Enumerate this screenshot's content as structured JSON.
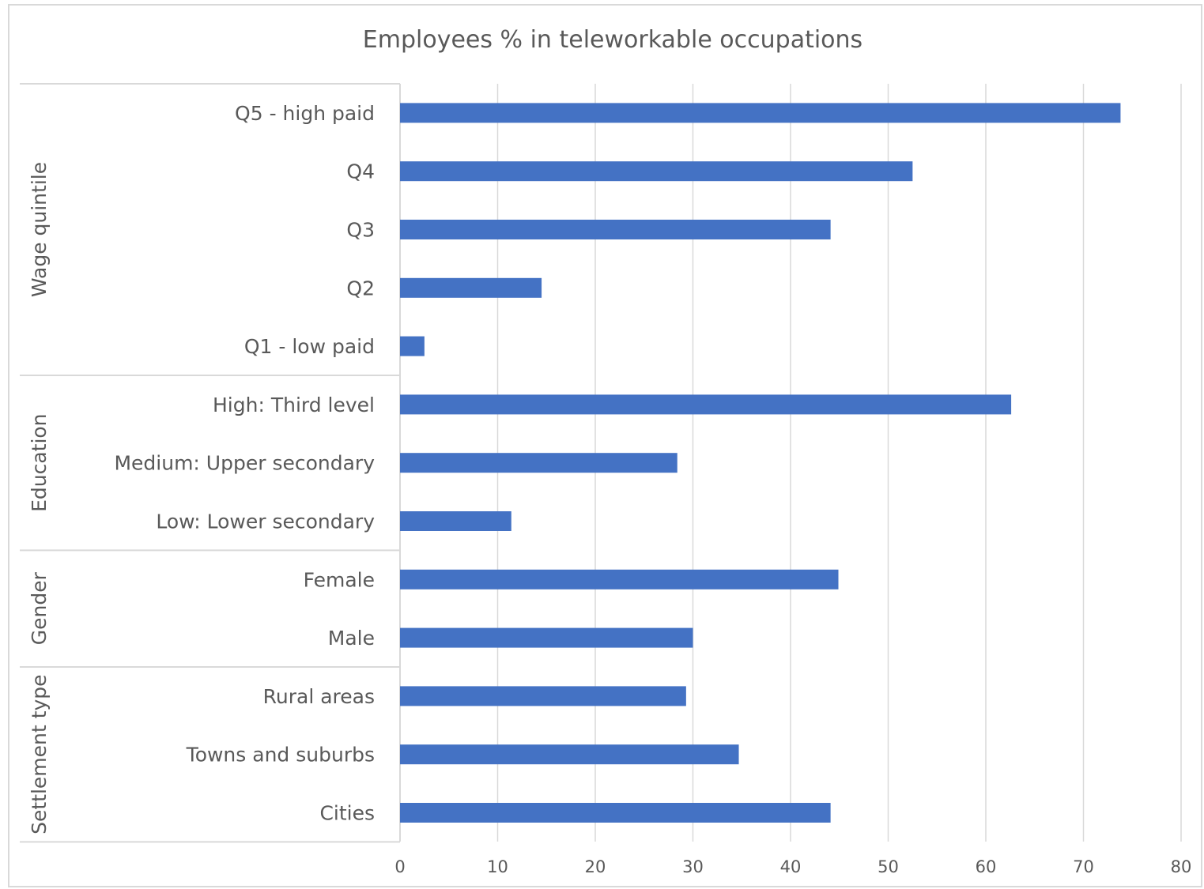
{
  "chart_data": {
    "type": "bar",
    "orientation": "horizontal",
    "title": "Employees % in teleworkable occupations",
    "xlabel": "",
    "ylabel": "",
    "xlim": [
      0,
      80
    ],
    "x_ticks": [
      0,
      10,
      20,
      30,
      40,
      50,
      60,
      70,
      80
    ],
    "grid": "vertical",
    "legend": "none",
    "bar_color": "#4472C4",
    "groups": [
      {
        "name": "Wage quintile",
        "categories": [
          "Q5 - high paid",
          "Q4",
          "Q3",
          "Q2",
          "Q1 - low paid"
        ],
        "values": [
          73.8,
          52.5,
          44.1,
          14.5,
          2.5
        ]
      },
      {
        "name": "Education",
        "categories": [
          "High: Third level",
          "Medium: Upper secondary",
          "Low: Lower secondary"
        ],
        "values": [
          62.6,
          28.4,
          11.4
        ]
      },
      {
        "name": "Gender",
        "categories": [
          "Female",
          "Male"
        ],
        "values": [
          44.9,
          30.0
        ]
      },
      {
        "name": "Settlement type",
        "categories": [
          "Rural areas",
          "Towns and suburbs",
          "Cities"
        ],
        "values": [
          29.3,
          34.7,
          44.1
        ]
      }
    ]
  }
}
